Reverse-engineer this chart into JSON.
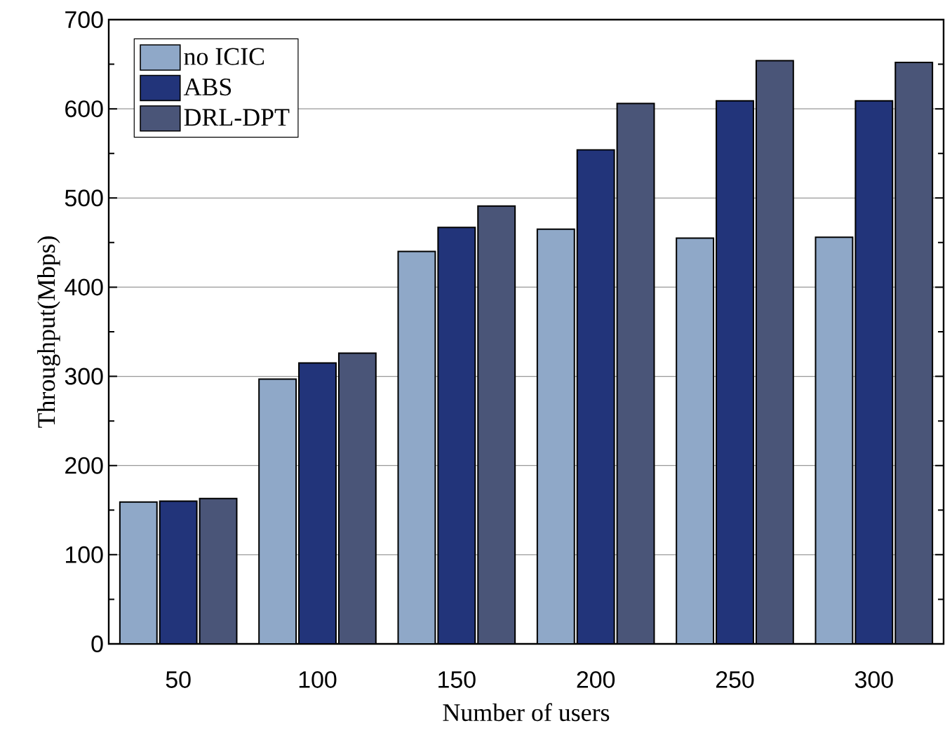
{
  "chart_data": {
    "type": "bar",
    "xlabel": "Number of  users",
    "ylabel": "Throughput(Mbps)",
    "categories": [
      "50",
      "100",
      "150",
      "200",
      "250",
      "300"
    ],
    "series": [
      {
        "name": "no ICIC",
        "color": "#8fa8c8",
        "values": [
          159,
          297,
          440,
          465,
          455,
          456
        ]
      },
      {
        "name": "ABS",
        "color": "#22347a",
        "values": [
          160,
          315,
          467,
          554,
          609,
          609
        ]
      },
      {
        "name": "DRL-DPT",
        "color": "#4a5578",
        "values": [
          163,
          326,
          491,
          606,
          654,
          652
        ]
      }
    ],
    "ylim": [
      0,
      700
    ],
    "yticks": [
      0,
      100,
      200,
      300,
      400,
      500,
      600,
      700
    ],
    "grid": "y",
    "legend": "top left"
  }
}
